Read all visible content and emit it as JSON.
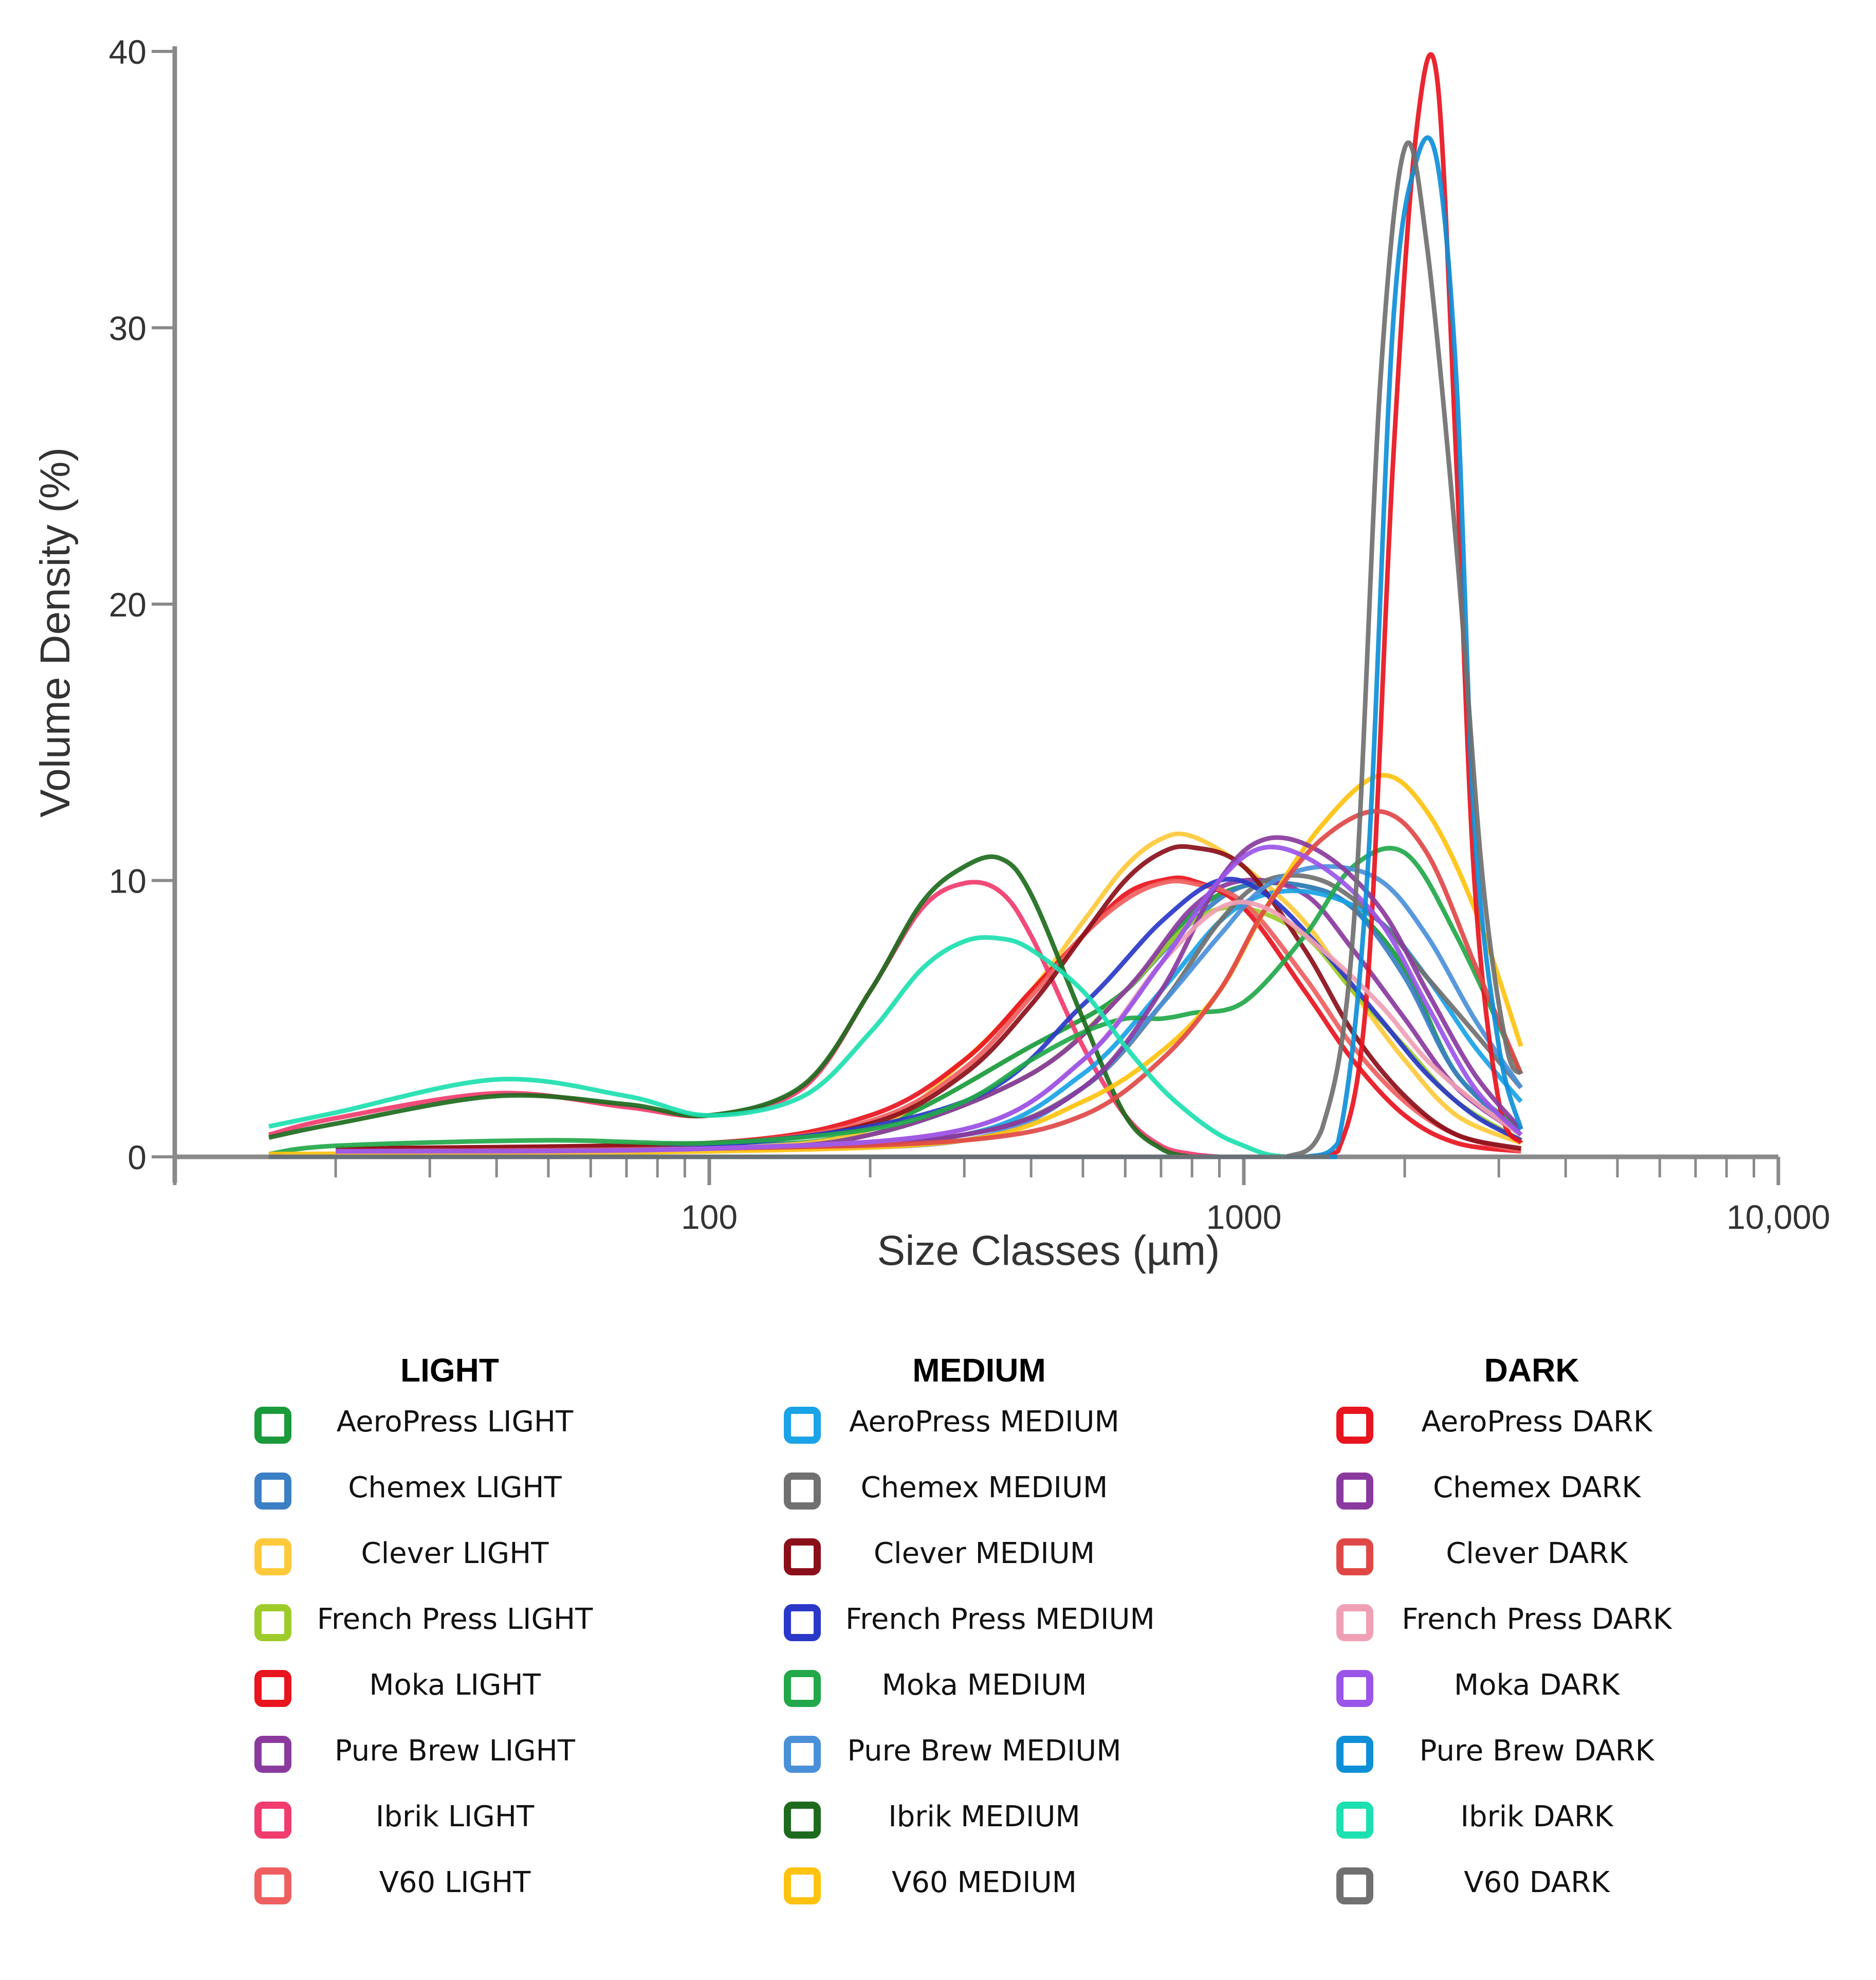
{
  "chart_data": {
    "type": "line",
    "title": "",
    "xlabel": "Size Classes (µm)",
    "ylabel": "Volume Density (%)",
    "x_scale": "log",
    "xlim": [
      10,
      10000
    ],
    "ylim": [
      0,
      40
    ],
    "x_ticks": [
      100,
      1000,
      10000
    ],
    "x_tick_labels": [
      "100",
      "1000",
      "10,000"
    ],
    "y_ticks": [
      0,
      10,
      20,
      30,
      40
    ],
    "y_tick_labels": [
      "0",
      "10",
      "20",
      "30",
      "40"
    ],
    "series": [
      {
        "name": "AeroPress LIGHT",
        "color": "#1a9a3a",
        "x": [
          20,
          100,
          200,
          400,
          600,
          800,
          1000,
          1300,
          1600,
          2000,
          2500,
          3300
        ],
        "y": [
          0.3,
          0.4,
          1.0,
          4.0,
          6.0,
          8.8,
          9.8,
          9.8,
          9.0,
          6.8,
          3.0,
          1.0
        ]
      },
      {
        "name": "Chemex LIGHT",
        "color": "#3b7fc4",
        "x": [
          20,
          100,
          200,
          400,
          600,
          800,
          1000,
          1300,
          1600,
          2000,
          2500,
          3300
        ],
        "y": [
          0.3,
          0.4,
          0.8,
          3.0,
          6.0,
          8.5,
          9.8,
          9.8,
          9.0,
          6.5,
          3.0,
          0.8
        ]
      },
      {
        "name": "Clever LIGHT",
        "color": "#ffc93a",
        "x": [
          20,
          100,
          200,
          300,
          400,
          500,
          600,
          700,
          800,
          1000,
          1300,
          1600,
          2000,
          2500,
          3300
        ],
        "y": [
          0.2,
          0.3,
          1.0,
          3.5,
          6.0,
          8.5,
          10.5,
          11.5,
          11.6,
          10.5,
          8.5,
          6.0,
          3.5,
          1.5,
          0.5
        ]
      },
      {
        "name": "French Press LIGHT",
        "color": "#9dcc2a",
        "x": [
          20,
          100,
          200,
          400,
          600,
          800,
          1000,
          1300,
          1600,
          2000,
          2500,
          3300
        ],
        "y": [
          0.2,
          0.3,
          0.8,
          3.0,
          6.0,
          8.5,
          9.0,
          8.0,
          6.0,
          4.0,
          2.0,
          0.6
        ]
      },
      {
        "name": "Moka LIGHT",
        "color": "#e8141e",
        "x": [
          20,
          100,
          200,
          300,
          400,
          500,
          600,
          700,
          800,
          1000,
          1300,
          1600,
          2000,
          2500,
          3300
        ],
        "y": [
          0.3,
          0.5,
          1.5,
          3.5,
          6.0,
          8.0,
          9.5,
          10.0,
          10.0,
          9.0,
          6.0,
          3.5,
          1.5,
          0.5,
          0.2
        ]
      },
      {
        "name": "Pure Brew LIGHT",
        "color": "#8a3a9e",
        "x": [
          20,
          100,
          200,
          400,
          600,
          800,
          1000,
          1300,
          1600,
          2000,
          2500,
          3300
        ],
        "y": [
          0.2,
          0.3,
          0.8,
          3.0,
          6.0,
          9.0,
          10.0,
          9.5,
          7.5,
          5.0,
          2.5,
          0.8
        ]
      },
      {
        "name": "Ibrik LIGHT",
        "color": "#f03c6e",
        "x": [
          15,
          20,
          40,
          70,
          100,
          150,
          200,
          250,
          300,
          350,
          400,
          500,
          600,
          700,
          800,
          900
        ],
        "y": [
          0.8,
          1.4,
          2.3,
          1.8,
          1.5,
          2.5,
          6.0,
          9.0,
          9.9,
          9.6,
          8.0,
          4.0,
          1.5,
          0.4,
          0.1,
          0.0
        ]
      },
      {
        "name": "V60 LIGHT",
        "color": "#ef5f5f",
        "x": [
          20,
          100,
          200,
          300,
          400,
          500,
          600,
          700,
          800,
          1000,
          1300,
          1600,
          2000,
          2500,
          3300
        ],
        "y": [
          0.3,
          0.5,
          1.3,
          3.2,
          5.8,
          8.0,
          9.3,
          9.9,
          9.9,
          9.2,
          6.5,
          4.0,
          2.0,
          0.8,
          0.2
        ]
      },
      {
        "name": "AeroPress MEDIUM",
        "color": "#1aa3e6",
        "x": [
          20,
          100,
          300,
          500,
          700,
          900,
          1100,
          1400,
          1800,
          2200,
          2700,
          3300
        ],
        "y": [
          0.2,
          0.3,
          0.8,
          3.0,
          6.0,
          8.5,
          9.5,
          9.5,
          8.5,
          6.5,
          4.0,
          2.0
        ]
      },
      {
        "name": "Chemex MEDIUM",
        "color": "#707070",
        "x": [
          20,
          100,
          300,
          500,
          700,
          900,
          1100,
          1400,
          1800,
          2200,
          2700,
          3300
        ],
        "y": [
          0.2,
          0.3,
          0.8,
          2.5,
          5.5,
          8.5,
          10.0,
          10.0,
          8.5,
          6.5,
          4.5,
          2.5
        ]
      },
      {
        "name": "Clever MEDIUM",
        "color": "#8b0f1a",
        "x": [
          20,
          100,
          200,
          300,
          400,
          500,
          600,
          700,
          800,
          1000,
          1300,
          1600,
          2000,
          2500,
          3300
        ],
        "y": [
          0.3,
          0.5,
          1.2,
          3.0,
          5.5,
          8.0,
          10.0,
          11.0,
          11.2,
          10.5,
          7.5,
          4.5,
          2.2,
          0.8,
          0.3
        ]
      },
      {
        "name": "French Press MEDIUM",
        "color": "#2a38c8",
        "x": [
          20,
          100,
          300,
          500,
          700,
          900,
          1100,
          1400,
          1800,
          2200,
          2700,
          3300
        ],
        "y": [
          0.2,
          0.4,
          2.0,
          5.5,
          8.5,
          10.0,
          9.5,
          7.5,
          5.0,
          3.0,
          1.5,
          0.6
        ]
      },
      {
        "name": "Moka MEDIUM",
        "color": "#22a84a",
        "x": [
          15,
          20,
          50,
          100,
          200,
          300,
          400,
          500,
          600,
          700,
          800,
          1000,
          1300,
          1600,
          2000,
          2500,
          3300
        ],
        "y": [
          0.1,
          0.4,
          0.6,
          0.5,
          1.0,
          2.0,
          3.5,
          4.5,
          5.0,
          5.0,
          5.2,
          5.6,
          8.0,
          10.5,
          11.0,
          8.0,
          3.0
        ]
      },
      {
        "name": "Pure Brew MEDIUM",
        "color": "#4a90d9",
        "x": [
          20,
          100,
          300,
          500,
          700,
          900,
          1100,
          1400,
          1800,
          2200,
          2700,
          3300
        ],
        "y": [
          0.2,
          0.3,
          0.6,
          2.5,
          5.5,
          8.0,
          9.8,
          10.5,
          10.0,
          8.0,
          5.0,
          2.5
        ]
      },
      {
        "name": "Ibrik MEDIUM",
        "color": "#1e6b1e",
        "x": [
          15,
          20,
          40,
          70,
          100,
          150,
          200,
          250,
          300,
          350,
          400,
          500,
          600,
          700,
          800,
          900
        ],
        "y": [
          0.7,
          1.2,
          2.2,
          1.9,
          1.5,
          2.6,
          6.0,
          9.2,
          10.5,
          10.8,
          9.5,
          5.0,
          1.5,
          0.3,
          0.0,
          0.0
        ]
      },
      {
        "name": "V60 MEDIUM",
        "color": "#ffc20e",
        "x": [
          15,
          100,
          300,
          500,
          700,
          900,
          1100,
          1400,
          1800,
          2200,
          2700,
          3300
        ],
        "y": [
          0.1,
          0.2,
          0.6,
          2.0,
          3.8,
          6.0,
          9.0,
          12.0,
          13.8,
          12.5,
          9.0,
          4.0
        ]
      },
      {
        "name": "AeroPress DARK",
        "color": "#e8141e",
        "x": [
          15,
          1000,
          1300,
          1500,
          1700,
          1900,
          2100,
          2300,
          2500,
          2700,
          3000,
          3300
        ],
        "y": [
          0.0,
          0.0,
          0.0,
          0.2,
          6.0,
          25.0,
          37.0,
          39.0,
          25.0,
          10.0,
          2.0,
          0.5
        ]
      },
      {
        "name": "Chemex DARK",
        "color": "#8a3a9e",
        "x": [
          20,
          100,
          300,
          500,
          700,
          900,
          1100,
          1400,
          1800,
          2200,
          2700,
          3300
        ],
        "y": [
          0.2,
          0.3,
          0.8,
          2.5,
          6.0,
          10.0,
          11.5,
          11.0,
          9.0,
          6.0,
          3.0,
          1.0
        ]
      },
      {
        "name": "Clever DARK",
        "color": "#e04848",
        "x": [
          20,
          100,
          300,
          500,
          700,
          900,
          1100,
          1400,
          1800,
          2200,
          2700,
          3300
        ],
        "y": [
          0.2,
          0.3,
          0.6,
          1.5,
          3.5,
          6.0,
          9.0,
          11.5,
          12.5,
          11.0,
          7.0,
          3.0
        ]
      },
      {
        "name": "French Press DARK",
        "color": "#f0a0b4",
        "x": [
          20,
          100,
          300,
          500,
          700,
          900,
          1100,
          1400,
          1800,
          2200,
          2700,
          3300
        ],
        "y": [
          0.2,
          0.3,
          1.0,
          3.5,
          7.0,
          9.0,
          9.0,
          7.5,
          5.5,
          3.5,
          2.0,
          0.8
        ]
      },
      {
        "name": "Moka DARK",
        "color": "#9a55e8",
        "x": [
          20,
          100,
          300,
          500,
          700,
          900,
          1100,
          1400,
          1800,
          2200,
          2700,
          3300
        ],
        "y": [
          0.2,
          0.3,
          1.0,
          3.5,
          7.0,
          10.0,
          11.2,
          10.5,
          8.5,
          5.5,
          2.5,
          0.8
        ]
      },
      {
        "name": "Pure Brew DARK",
        "color": "#0e8fd8",
        "x": [
          15,
          1000,
          1300,
          1500,
          1700,
          1900,
          2100,
          2300,
          2500,
          2700,
          3000,
          3300
        ],
        "y": [
          0.0,
          0.0,
          0.0,
          0.5,
          10.0,
          30.0,
          36.0,
          36.0,
          28.0,
          12.0,
          4.0,
          1.0
        ]
      },
      {
        "name": "Ibrik DARK",
        "color": "#1de0b0",
        "x": [
          15,
          20,
          40,
          70,
          100,
          150,
          200,
          250,
          300,
          350,
          400,
          500,
          600,
          700,
          800,
          900,
          1000,
          1100,
          1200
        ],
        "y": [
          1.1,
          1.6,
          2.8,
          2.2,
          1.5,
          2.2,
          4.5,
          6.8,
          7.8,
          7.9,
          7.5,
          6.0,
          4.0,
          2.5,
          1.5,
          0.8,
          0.4,
          0.1,
          0.0
        ]
      },
      {
        "name": "V60 DARK",
        "color": "#707070",
        "x": [
          15,
          1000,
          1200,
          1400,
          1600,
          1800,
          2000,
          2200,
          2500,
          2800,
          3100,
          3300
        ],
        "y": [
          0.0,
          0.0,
          0.0,
          1.0,
          8.0,
          28.0,
          36.5,
          33.0,
          22.0,
          10.0,
          4.0,
          3.0
        ]
      }
    ]
  },
  "legend": {
    "groups": [
      {
        "title": "LIGHT",
        "items": [
          {
            "label": "AeroPress LIGHT",
            "color": "#1a9a3a"
          },
          {
            "label": "Chemex LIGHT",
            "color": "#3b7fc4"
          },
          {
            "label": "Clever LIGHT",
            "color": "#ffc93a"
          },
          {
            "label": "French Press LIGHT",
            "color": "#9dcc2a"
          },
          {
            "label": "Moka LIGHT",
            "color": "#e8141e"
          },
          {
            "label": "Pure Brew LIGHT",
            "color": "#8a3a9e"
          },
          {
            "label": "Ibrik LIGHT",
            "color": "#f03c6e"
          },
          {
            "label": "V60 LIGHT",
            "color": "#ef5f5f"
          }
        ]
      },
      {
        "title": "MEDIUM",
        "items": [
          {
            "label": "AeroPress MEDIUM",
            "color": "#1aa3e6"
          },
          {
            "label": "Chemex MEDIUM",
            "color": "#707070"
          },
          {
            "label": "Clever MEDIUM",
            "color": "#8b0f1a"
          },
          {
            "label": "French Press MEDIUM",
            "color": "#2a38c8"
          },
          {
            "label": "Moka MEDIUM",
            "color": "#22a84a"
          },
          {
            "label": "Pure Brew MEDIUM",
            "color": "#4a90d9"
          },
          {
            "label": "Ibrik MEDIUM",
            "color": "#1e6b1e"
          },
          {
            "label": "V60 MEDIUM",
            "color": "#ffc20e"
          }
        ]
      },
      {
        "title": "DARK",
        "items": [
          {
            "label": "AeroPress DARK",
            "color": "#e8141e"
          },
          {
            "label": "Chemex DARK",
            "color": "#8a3a9e"
          },
          {
            "label": "Clever DARK",
            "color": "#e04848"
          },
          {
            "label": "French Press DARK",
            "color": "#f0a0b4"
          },
          {
            "label": "Moka DARK",
            "color": "#9a55e8"
          },
          {
            "label": "Pure Brew DARK",
            "color": "#0e8fd8"
          },
          {
            "label": "Ibrik DARK",
            "color": "#1de0b0"
          },
          {
            "label": "V60 DARK",
            "color": "#707070"
          }
        ]
      }
    ]
  }
}
